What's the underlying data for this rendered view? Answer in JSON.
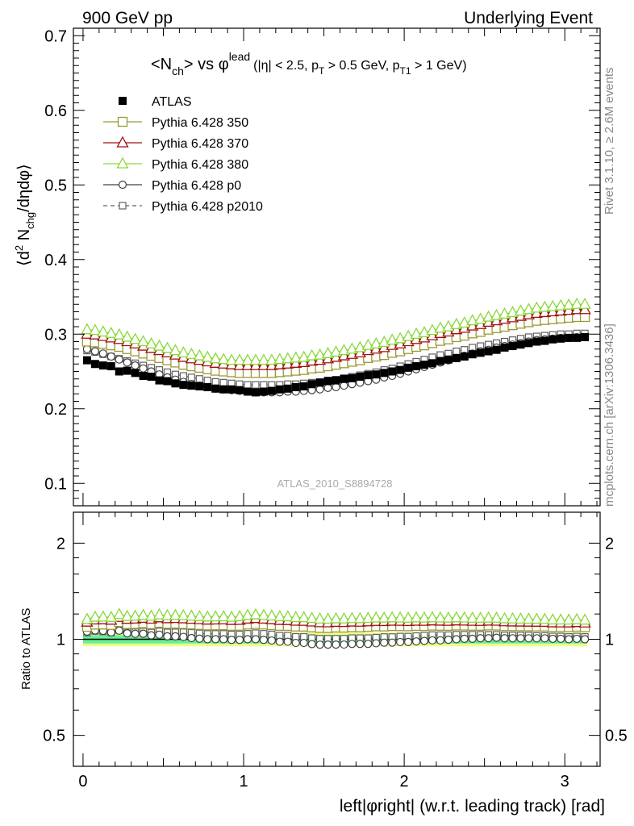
{
  "header": {
    "left": "900 GeV pp",
    "right": "Underlying Event"
  },
  "side_labels": {
    "rivet": "Rivet 3.1.10, ≥ 2.6M events",
    "mcplots": "mcplots.cern.ch [arXiv:1306.3436]"
  },
  "main_title": {
    "part1": "<N",
    "sub1": "ch",
    "part2": "> vs φ",
    "sup1": "lead",
    "part3": "(|η| < 2.5, p",
    "sub2": "T",
    "part4": " > 0.5 GeV, p",
    "sub3": "T1",
    "part5": " > 1 GeV)"
  },
  "ylabel_top": {
    "p1": "⟨d",
    "sup": "2",
    "p2": " N",
    "sub": "chg",
    "p3": "/dηdφ⟩"
  },
  "ylabel_bottom": "Ratio to ATLAS",
  "xlabel": "left|φright| (w.r.t. leading track) [rad]",
  "watermark": "ATLAS_2010_S8894728",
  "colors": {
    "atlas": "#000000",
    "p350": "#9a9a34",
    "p370": "#a01010",
    "p380": "#8ad93a",
    "p0": "#404040",
    "p2010": "#606060",
    "band_inner": "#66ee99",
    "band_outer": "#eeff88"
  },
  "chart_data": [
    {
      "type": "scatter",
      "ylim": [
        0.07,
        0.71
      ],
      "xlim": [
        -0.06,
        3.22
      ],
      "yticks": [
        "0.1",
        "0.2",
        "0.3",
        "0.4",
        "0.5",
        "0.6",
        "0.7"
      ],
      "legend_position": "top-left",
      "x": [
        0.025,
        0.075,
        0.125,
        0.175,
        0.225,
        0.275,
        0.325,
        0.375,
        0.425,
        0.475,
        0.525,
        0.575,
        0.625,
        0.675,
        0.725,
        0.775,
        0.825,
        0.875,
        0.925,
        0.975,
        1.025,
        1.075,
        1.125,
        1.175,
        1.225,
        1.275,
        1.325,
        1.375,
        1.425,
        1.475,
        1.525,
        1.575,
        1.625,
        1.675,
        1.725,
        1.775,
        1.825,
        1.875,
        1.925,
        1.975,
        2.025,
        2.075,
        2.125,
        2.175,
        2.225,
        2.275,
        2.325,
        2.375,
        2.425,
        2.475,
        2.525,
        2.575,
        2.625,
        2.675,
        2.725,
        2.775,
        2.825,
        2.875,
        2.925,
        2.975,
        3.025,
        3.075,
        3.125
      ],
      "series": [
        {
          "name": "ATLAS",
          "key": "atlas",
          "marker": "square-filled",
          "values": [
            0.265,
            0.26,
            0.258,
            0.257,
            0.25,
            0.251,
            0.248,
            0.244,
            0.243,
            0.238,
            0.237,
            0.234,
            0.232,
            0.231,
            0.23,
            0.229,
            0.227,
            0.226,
            0.226,
            0.225,
            0.223,
            0.222,
            0.223,
            0.224,
            0.226,
            0.227,
            0.229,
            0.23,
            0.233,
            0.235,
            0.237,
            0.238,
            0.24,
            0.241,
            0.243,
            0.245,
            0.246,
            0.248,
            0.25,
            0.252,
            0.255,
            0.257,
            0.259,
            0.261,
            0.264,
            0.266,
            0.268,
            0.27,
            0.273,
            0.275,
            0.277,
            0.279,
            0.282,
            0.284,
            0.286,
            0.288,
            0.29,
            0.291,
            0.293,
            0.294,
            0.295,
            0.295,
            0.296
          ]
        },
        {
          "name": "Pythia 6.428 350",
          "key": "p350",
          "marker": "square-open",
          "line": "solid",
          "values": [
            0.29,
            0.289,
            0.287,
            0.285,
            0.283,
            0.28,
            0.277,
            0.274,
            0.271,
            0.268,
            0.265,
            0.262,
            0.259,
            0.257,
            0.255,
            0.253,
            0.251,
            0.25,
            0.249,
            0.248,
            0.248,
            0.248,
            0.248,
            0.248,
            0.249,
            0.25,
            0.251,
            0.252,
            0.254,
            0.255,
            0.257,
            0.259,
            0.261,
            0.263,
            0.265,
            0.268,
            0.27,
            0.272,
            0.275,
            0.277,
            0.28,
            0.283,
            0.285,
            0.288,
            0.291,
            0.293,
            0.296,
            0.298,
            0.301,
            0.303,
            0.306,
            0.308,
            0.31,
            0.312,
            0.314,
            0.316,
            0.318,
            0.319,
            0.32,
            0.321,
            0.322,
            0.323,
            0.323
          ]
        },
        {
          "name": "Pythia 6.428 370",
          "key": "p370",
          "marker": "triangle-open",
          "line": "solid",
          "values": [
            0.3,
            0.299,
            0.297,
            0.295,
            0.293,
            0.29,
            0.287,
            0.284,
            0.281,
            0.278,
            0.275,
            0.272,
            0.269,
            0.267,
            0.265,
            0.263,
            0.261,
            0.26,
            0.259,
            0.258,
            0.258,
            0.258,
            0.258,
            0.258,
            0.259,
            0.26,
            0.261,
            0.262,
            0.264,
            0.265,
            0.267,
            0.269,
            0.271,
            0.273,
            0.275,
            0.278,
            0.28,
            0.282,
            0.285,
            0.287,
            0.29,
            0.293,
            0.295,
            0.298,
            0.301,
            0.303,
            0.306,
            0.308,
            0.311,
            0.313,
            0.316,
            0.318,
            0.32,
            0.322,
            0.324,
            0.326,
            0.328,
            0.329,
            0.33,
            0.331,
            0.332,
            0.333,
            0.333
          ]
        },
        {
          "name": "Pythia 6.428 380",
          "key": "p380",
          "marker": "triangle-open",
          "line": "solid",
          "values": [
            0.306,
            0.305,
            0.303,
            0.301,
            0.299,
            0.296,
            0.293,
            0.29,
            0.287,
            0.284,
            0.281,
            0.278,
            0.275,
            0.273,
            0.271,
            0.269,
            0.267,
            0.266,
            0.265,
            0.265,
            0.265,
            0.265,
            0.265,
            0.265,
            0.266,
            0.267,
            0.268,
            0.269,
            0.271,
            0.272,
            0.274,
            0.276,
            0.278,
            0.28,
            0.282,
            0.285,
            0.287,
            0.289,
            0.292,
            0.294,
            0.297,
            0.3,
            0.302,
            0.305,
            0.308,
            0.31,
            0.313,
            0.315,
            0.318,
            0.32,
            0.323,
            0.325,
            0.327,
            0.329,
            0.331,
            0.333,
            0.335,
            0.336,
            0.337,
            0.338,
            0.339,
            0.34,
            0.34
          ]
        },
        {
          "name": "Pythia 6.428 p0",
          "key": "p0",
          "marker": "circle-open",
          "line": "solid",
          "values": [
            0.28,
            0.277,
            0.274,
            0.27,
            0.266,
            0.262,
            0.258,
            0.254,
            0.25,
            0.246,
            0.242,
            0.239,
            0.236,
            0.233,
            0.231,
            0.229,
            0.227,
            0.226,
            0.225,
            0.224,
            0.223,
            0.222,
            0.222,
            0.222,
            0.222,
            0.223,
            0.223,
            0.224,
            0.225,
            0.226,
            0.228,
            0.229,
            0.231,
            0.233,
            0.235,
            0.237,
            0.239,
            0.242,
            0.244,
            0.247,
            0.25,
            0.253,
            0.256,
            0.259,
            0.262,
            0.265,
            0.268,
            0.271,
            0.274,
            0.277,
            0.279,
            0.282,
            0.284,
            0.286,
            0.288,
            0.29,
            0.292,
            0.293,
            0.294,
            0.295,
            0.295,
            0.296,
            0.296
          ]
        },
        {
          "name": "Pythia 6.428 p2010",
          "key": "p2010",
          "marker": "square-open-small",
          "line": "dashed",
          "values": [
            0.278,
            0.276,
            0.273,
            0.27,
            0.267,
            0.264,
            0.261,
            0.258,
            0.255,
            0.252,
            0.249,
            0.246,
            0.244,
            0.242,
            0.24,
            0.238,
            0.236,
            0.235,
            0.234,
            0.233,
            0.232,
            0.232,
            0.232,
            0.232,
            0.232,
            0.233,
            0.233,
            0.234,
            0.235,
            0.236,
            0.238,
            0.239,
            0.241,
            0.243,
            0.245,
            0.247,
            0.249,
            0.252,
            0.254,
            0.257,
            0.26,
            0.263,
            0.266,
            0.269,
            0.272,
            0.274,
            0.277,
            0.279,
            0.282,
            0.284,
            0.286,
            0.288,
            0.29,
            0.292,
            0.294,
            0.296,
            0.297,
            0.298,
            0.299,
            0.3,
            0.3,
            0.301,
            0.301
          ]
        }
      ]
    },
    {
      "type": "scatter",
      "ylabel": "Ratio to ATLAS",
      "scale": "log",
      "ylim": [
        0.4,
        2.5
      ],
      "yticks": [
        "0.5",
        "1",
        "2"
      ],
      "xticks": [
        "0",
        "1",
        "2",
        "3"
      ],
      "band_inner": [
        0.97,
        1.03
      ],
      "band_outer": [
        0.95,
        1.05
      ],
      "note": "ratio series are each Pythia series divided by ATLAS at the same x"
    }
  ]
}
